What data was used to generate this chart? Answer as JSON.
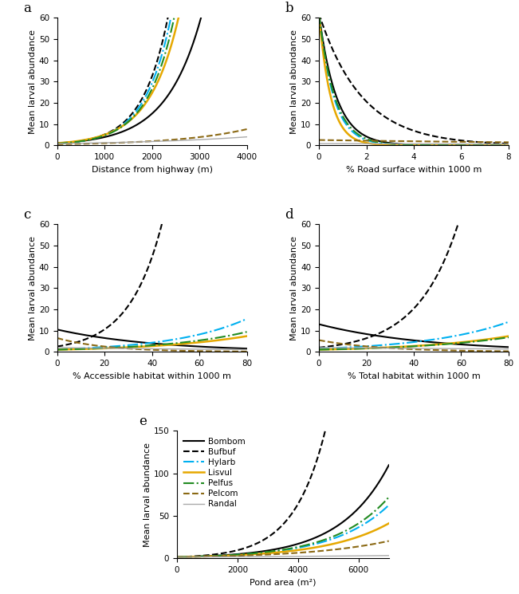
{
  "species": [
    "Bombom",
    "Bufbuf",
    "Hylarb",
    "Lisvul",
    "Pelfus",
    "Pelcom",
    "Randal"
  ],
  "colors": [
    "#000000",
    "#000000",
    "#00b0f0",
    "#e6a800",
    "#228B22",
    "#8B6914",
    "#aaaaaa"
  ],
  "linestyles": [
    "solid",
    "dashed",
    "dashdot",
    "solid",
    "dashdot",
    "dashed",
    "solid"
  ],
  "linewidths": [
    1.5,
    1.5,
    1.5,
    1.8,
    1.5,
    1.5,
    1.0
  ],
  "panel_a": {
    "xlabel": "Distance from highway (m)",
    "ylabel": "Mean larval abundance",
    "xlim": [
      0,
      4000
    ],
    "ylim": [
      0,
      60
    ],
    "yticks": [
      0,
      10,
      20,
      30,
      40,
      50,
      60
    ],
    "xticks": [
      0,
      1000,
      2000,
      3000,
      4000
    ],
    "label": "a",
    "species_params": {
      "Bombom": {
        "a": 1.0,
        "b": 0.00135
      },
      "Bufbuf": {
        "a": 0.8,
        "b": 0.00185
      },
      "Hylarb": {
        "a": 0.8,
        "b": 0.0018
      },
      "Lisvul": {
        "a": 1.0,
        "b": 0.0016
      },
      "Pelfus": {
        "a": 0.8,
        "b": 0.00175
      },
      "Pelcom": {
        "a": 0.5,
        "b": 0.00068
      },
      "Randal": {
        "a": 0.8,
        "b": 0.0004
      }
    }
  },
  "panel_b": {
    "xlabel": "% Road surface within 1000 m",
    "ylabel": "Mean larval abundance",
    "xlim": [
      0,
      8
    ],
    "ylim": [
      0,
      60
    ],
    "yticks": [
      0,
      10,
      20,
      30,
      40,
      50,
      60
    ],
    "xticks": [
      0,
      2,
      4,
      6,
      8
    ],
    "label": "b",
    "species_params": {
      "Bombom": {
        "a": 62.0,
        "b": -1.35
      },
      "Bufbuf": {
        "a": 62.0,
        "b": -0.55
      },
      "Hylarb": {
        "a": 62.0,
        "b": -1.6
      },
      "Lisvul": {
        "a": 62.0,
        "b": -2.0
      },
      "Pelfus": {
        "a": 62.0,
        "b": -1.5
      },
      "Pelcom": {
        "a": 2.5,
        "b": -0.07
      },
      "Randal": {
        "a": 0.8,
        "b": -0.04
      }
    }
  },
  "panel_c": {
    "xlabel": "% Accessible habitat within 1000 m",
    "ylabel": "Mean larval abundance",
    "xlim": [
      0,
      80
    ],
    "ylim": [
      0,
      60
    ],
    "yticks": [
      0,
      10,
      20,
      30,
      40,
      50,
      60
    ],
    "xticks": [
      0,
      20,
      40,
      60,
      80
    ],
    "label": "c",
    "species_params": {
      "Bombom": {
        "a": 10.5,
        "b": -0.024
      },
      "Bufbuf": {
        "a": 2.5,
        "b": 0.072
      },
      "Hylarb": {
        "a": 1.2,
        "b": 0.032
      },
      "Lisvul": {
        "a": 1.0,
        "b": 0.025
      },
      "Pelfus": {
        "a": 1.0,
        "b": 0.028
      },
      "Pelcom": {
        "a": 6.5,
        "b": -0.048
      },
      "Randal": {
        "a": 2.0,
        "b": -0.008
      }
    }
  },
  "panel_d": {
    "xlabel": "% Total habitat within 1000 m",
    "ylabel": "Mean larval abundance",
    "xlim": [
      0,
      80
    ],
    "ylim": [
      0,
      60
    ],
    "yticks": [
      0,
      10,
      20,
      30,
      40,
      50,
      60
    ],
    "xticks": [
      0,
      20,
      40,
      60,
      80
    ],
    "label": "d",
    "species_params": {
      "Bombom": {
        "a": 13.0,
        "b": -0.022
      },
      "Bufbuf": {
        "a": 2.0,
        "b": 0.058
      },
      "Hylarb": {
        "a": 1.5,
        "b": 0.028
      },
      "Lisvul": {
        "a": 1.0,
        "b": 0.025
      },
      "Pelfus": {
        "a": 1.0,
        "b": 0.024
      },
      "Pelcom": {
        "a": 5.5,
        "b": -0.038
      },
      "Randal": {
        "a": 2.0,
        "b": -0.005
      }
    }
  },
  "panel_e": {
    "xlabel": "Pond area (m²)",
    "ylabel": "Mean larval abundance",
    "xlim": [
      0,
      7000
    ],
    "ylim": [
      0,
      150
    ],
    "yticks": [
      0,
      50,
      100,
      150
    ],
    "xticks": [
      0,
      2000,
      4000,
      6000
    ],
    "label": "e",
    "species_params": {
      "Bombom": {
        "a": 1.43,
        "b": 0.00062
      },
      "Bufbuf": {
        "a": 1.43,
        "b": 0.00095
      },
      "Hylarb": {
        "a": 1.43,
        "b": 0.00054
      },
      "Lisvul": {
        "a": 1.43,
        "b": 0.00048
      },
      "Pelfus": {
        "a": 1.43,
        "b": 0.00056
      },
      "Pelcom": {
        "a": 1.43,
        "b": 0.00038
      },
      "Randal": {
        "a": 1.43,
        "b": 0.00012
      }
    }
  }
}
